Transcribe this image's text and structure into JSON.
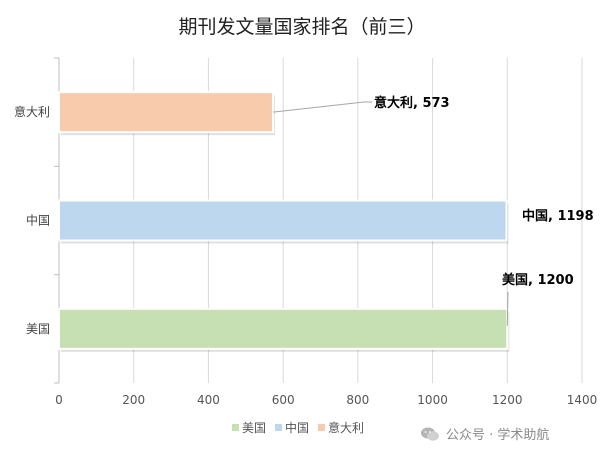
{
  "chart_data": {
    "type": "bar",
    "orientation": "horizontal",
    "title": "期刊发文量国家排名（前三）",
    "categories": [
      "美国",
      "中国",
      "意大利"
    ],
    "series": [
      {
        "name": "美国",
        "values": [
          1200,
          null,
          null
        ],
        "color": "#c6e0b4"
      },
      {
        "name": "中国",
        "values": [
          null,
          1198,
          null
        ],
        "color": "#bdd7ee"
      },
      {
        "name": "意大利",
        "values": [
          null,
          null,
          573
        ],
        "color": "#f8cbad"
      }
    ],
    "data_labels": [
      "美国, 1200",
      "中国, 1198",
      "意大利, 573"
    ],
    "xlim": [
      0,
      1400
    ],
    "xticks": [
      0,
      200,
      400,
      600,
      800,
      1000,
      1200,
      1400
    ],
    "grid": "vertical",
    "legend": "bottom"
  },
  "watermark": {
    "icon": "wechat-icon",
    "text": "公众号 · 学术助航"
  }
}
